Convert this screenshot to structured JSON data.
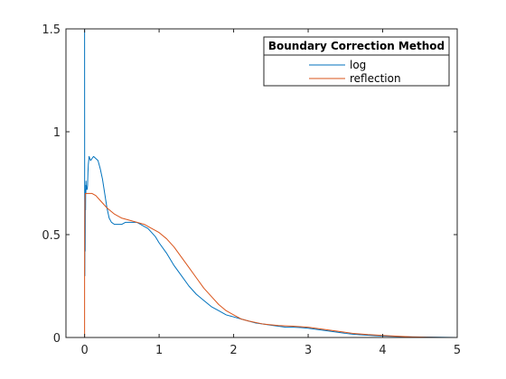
{
  "chart_data": {
    "type": "line",
    "title": "",
    "xlabel": "",
    "ylabel": "",
    "xlim": [
      -0.25,
      5
    ],
    "ylim": [
      0,
      1.5
    ],
    "xticks": [
      0,
      1,
      2,
      3,
      4,
      5
    ],
    "xtick_labels": [
      "0",
      "1",
      "2",
      "3",
      "4",
      "5"
    ],
    "yticks": [
      0,
      0.5,
      1,
      1.5
    ],
    "ytick_labels": [
      "0",
      "0.5",
      "1",
      "1.5"
    ],
    "grid": false,
    "box": true,
    "legend": {
      "title": "Boundary Correction Method",
      "location": "top-right"
    },
    "series": [
      {
        "name": "log",
        "color": "#0072BD",
        "x": [
          0.0,
          0.001,
          0.003,
          0.005,
          0.008,
          0.011,
          0.013,
          0.015,
          0.017,
          0.019,
          0.021,
          0.023,
          0.025,
          0.03,
          0.035,
          0.04,
          0.045,
          0.05,
          0.055,
          0.06,
          0.08,
          0.1,
          0.12,
          0.15,
          0.18,
          0.21,
          0.24,
          0.27,
          0.3,
          0.33,
          0.36,
          0.4,
          0.45,
          0.5,
          0.55,
          0.6,
          0.65,
          0.7,
          0.75,
          0.8,
          0.85,
          0.9,
          0.95,
          1.0,
          1.1,
          1.2,
          1.3,
          1.4,
          1.5,
          1.6,
          1.7,
          1.8,
          1.9,
          2.0,
          2.1,
          2.2,
          2.3,
          2.4,
          2.5,
          2.6,
          2.7,
          2.8,
          2.9,
          3.0,
          3.1,
          3.2,
          3.3,
          3.4,
          3.5,
          3.6,
          3.7,
          3.8,
          3.9,
          4.0,
          4.2,
          4.4,
          4.6,
          4.8,
          5.0
        ],
        "y": [
          1.5,
          0.75,
          0.3,
          0.72,
          0.42,
          0.72,
          0.62,
          0.74,
          0.7,
          0.76,
          0.72,
          0.74,
          0.73,
          0.72,
          0.72,
          0.74,
          0.8,
          0.84,
          0.86,
          0.88,
          0.86,
          0.87,
          0.88,
          0.87,
          0.86,
          0.82,
          0.77,
          0.7,
          0.63,
          0.58,
          0.56,
          0.55,
          0.55,
          0.55,
          0.56,
          0.56,
          0.56,
          0.56,
          0.55,
          0.54,
          0.53,
          0.51,
          0.49,
          0.46,
          0.41,
          0.35,
          0.3,
          0.25,
          0.21,
          0.18,
          0.15,
          0.13,
          0.11,
          0.1,
          0.09,
          0.08,
          0.07,
          0.065,
          0.06,
          0.055,
          0.05,
          0.05,
          0.048,
          0.045,
          0.04,
          0.035,
          0.03,
          0.025,
          0.02,
          0.016,
          0.013,
          0.011,
          0.009,
          0.007,
          0.005,
          0.003,
          0.002,
          0.001,
          0.0
        ]
      },
      {
        "name": "reflection",
        "color": "#D95319",
        "x": [
          0.0,
          0.0,
          0.002,
          0.005,
          0.01,
          0.02,
          0.05,
          0.1,
          0.15,
          0.2,
          0.3,
          0.4,
          0.5,
          0.6,
          0.7,
          0.8,
          0.9,
          1.0,
          1.1,
          1.2,
          1.3,
          1.4,
          1.5,
          1.6,
          1.7,
          1.8,
          1.9,
          2.0,
          2.1,
          2.2,
          2.4,
          2.6,
          2.8,
          3.0,
          3.2,
          3.4,
          3.6,
          3.8,
          4.0,
          4.2,
          4.4,
          4.5,
          4.6,
          4.8,
          5.0
        ],
        "y": [
          0.0,
          0.3,
          0.55,
          0.66,
          0.7,
          0.7,
          0.7,
          0.7,
          0.69,
          0.67,
          0.63,
          0.6,
          0.58,
          0.57,
          0.56,
          0.55,
          0.53,
          0.51,
          0.48,
          0.44,
          0.39,
          0.34,
          0.29,
          0.24,
          0.2,
          0.16,
          0.13,
          0.11,
          0.09,
          0.08,
          0.065,
          0.058,
          0.055,
          0.05,
          0.04,
          0.03,
          0.02,
          0.014,
          0.01,
          0.006,
          0.003,
          0.002,
          0.001,
          0.0,
          0.0
        ]
      }
    ]
  }
}
